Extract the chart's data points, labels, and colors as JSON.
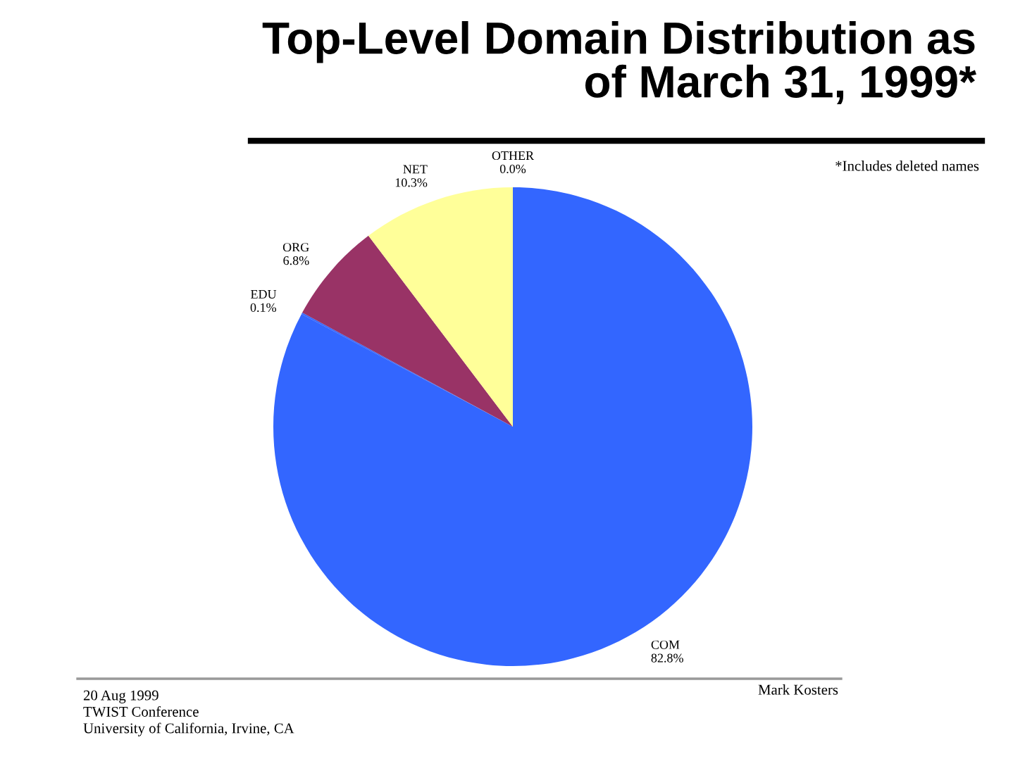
{
  "chart_data": {
    "type": "pie",
    "title": "Top-Level Domain Distribution as\nof March 31, 1999*",
    "categories": [
      "COM",
      "EDU",
      "ORG",
      "NET",
      "OTHER"
    ],
    "values": [
      82.8,
      0.1,
      6.8,
      10.3,
      0.0
    ],
    "value_labels": [
      "82.8%",
      "0.1%",
      "6.8%",
      "10.3%",
      "0.0%"
    ],
    "colors": [
      "#3366ff",
      "#3366ff",
      "#993366",
      "#ffff99",
      "#3366ff"
    ],
    "annotations": [
      "*Includes deleted names",
      "20 Aug 1999\nTWIST Conference\nUniversity of California, Irvine, CA",
      "Mark Kosters"
    ]
  }
}
